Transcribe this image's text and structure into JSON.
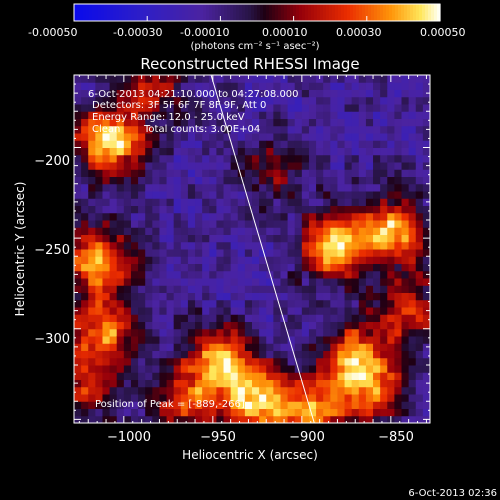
{
  "colorbar": {
    "ticks": [
      "-0.00050",
      "-0.00030",
      "-0.00010",
      "0.00010",
      "0.00030",
      "0.00050"
    ],
    "units_label": "(photons cm⁻² s⁻¹ asec⁻²)",
    "range": [
      -0.0005,
      0.0005
    ]
  },
  "chart_data": {
    "type": "heatmap",
    "title": "Reconstructed RHESSI Image",
    "xlabel": "Heliocentric X (arcsec)",
    "ylabel": "Heliocentric Y (arcsec)",
    "xlim": [
      -1028,
      -828
    ],
    "ylim": [
      -352,
      -160
    ],
    "x_ticks": [
      -1000,
      -950,
      -900,
      -850
    ],
    "x_tick_labels": [
      "−1000",
      "−950",
      "−900",
      "−850"
    ],
    "y_ticks": [
      -300,
      -250,
      -200
    ],
    "y_tick_labels": [
      "−300",
      "−250",
      "−200"
    ],
    "limb_line": {
      "x": [
        -951,
        -893
      ],
      "y": [
        -160,
        -352
      ]
    },
    "peak": {
      "x": -889,
      "y": -266
    },
    "bright_sources": [
      {
        "x": -1008,
        "y": -196,
        "intensity": 1.0
      },
      {
        "x": -882,
        "y": -254,
        "intensity": 1.0
      },
      {
        "x": -848,
        "y": -246,
        "intensity": 0.85
      },
      {
        "x": -1015,
        "y": -262,
        "intensity": 0.8
      },
      {
        "x": -1010,
        "y": -300,
        "intensity": 0.75
      },
      {
        "x": -945,
        "y": -318,
        "intensity": 0.9
      },
      {
        "x": -925,
        "y": -340,
        "intensity": 0.85
      },
      {
        "x": -870,
        "y": -315,
        "intensity": 0.8
      },
      {
        "x": -895,
        "y": -345,
        "intensity": 0.75
      },
      {
        "x": -965,
        "y": -340,
        "intensity": 0.6
      },
      {
        "x": -1020,
        "y": -330,
        "intensity": 0.55
      },
      {
        "x": -840,
        "y": -290,
        "intensity": 0.6
      },
      {
        "x": -985,
        "y": -165,
        "intensity": 0.5
      },
      {
        "x": -915,
        "y": -210,
        "intensity": 0.35
      },
      {
        "x": -860,
        "y": -335,
        "intensity": 0.6
      }
    ]
  },
  "overlay": {
    "time_range": "6-Oct-2013 04:21:10.000 to 04:27:08.000",
    "detectors": "Detectors: 3F 5F 6F 7F 8F 9F, Att 0",
    "energy": "Energy Range: 12.0 - 25.0 keV",
    "algorithm": "Clean",
    "total_counts": "Total counts: 3.00E+04",
    "peak_label": "Position of Peak = [-889,-266]"
  },
  "footer": {
    "timestamp": "6-Oct-2013 02:36"
  }
}
